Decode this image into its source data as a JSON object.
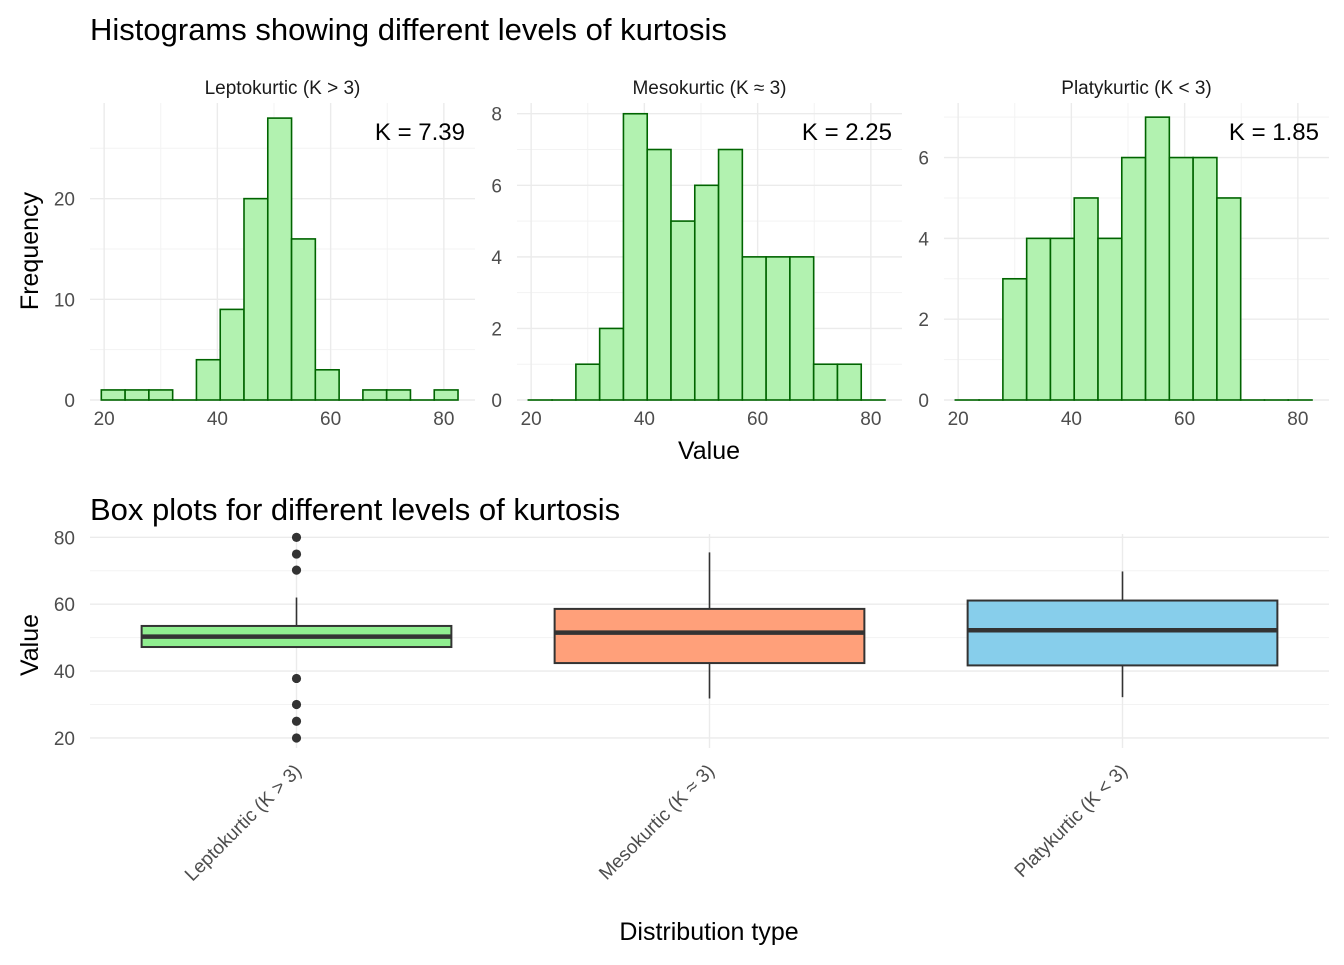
{
  "colors": {
    "hist_fill": "#b2f2b0",
    "hist_stroke": "#006400",
    "grid_major": "#ebebeb",
    "grid_minor": "#f3f3f3",
    "axis_text": "#4d4d4d",
    "title_text": "#000000",
    "box_stroke": "#333333"
  },
  "hist_title": "Histograms showing different levels of kurtosis",
  "hist_ylabel": "Frequency",
  "hist_xlabel": "Value",
  "box_title": "Box plots for different levels of kurtosis",
  "box_ylabel": "Value",
  "box_xlabel": "Distribution type",
  "chart_data": [
    {
      "type": "bar",
      "panel": "Leptokurtic (K > 3)",
      "annotation": "K = 7.39",
      "bin_width": 4.2,
      "bins": [
        [
          19.5,
          1
        ],
        [
          23.7,
          1
        ],
        [
          27.9,
          1
        ],
        [
          32.1,
          0
        ],
        [
          36.3,
          4
        ],
        [
          40.5,
          9
        ],
        [
          44.7,
          20
        ],
        [
          48.9,
          28
        ],
        [
          53.1,
          16
        ],
        [
          57.3,
          3
        ],
        [
          61.5,
          0
        ],
        [
          65.7,
          1
        ],
        [
          69.9,
          1
        ],
        [
          74.1,
          0
        ],
        [
          78.3,
          1
        ]
      ],
      "xlim": [
        17.5,
        85.5
      ],
      "ylim": [
        0,
        29.5
      ],
      "xticks": [
        20,
        40,
        60,
        80
      ],
      "yticks": [
        0,
        10,
        20
      ],
      "xlabel": "",
      "ylabel": "Frequency"
    },
    {
      "type": "bar",
      "panel": "Mesokurtic (K ≈ 3)",
      "annotation": "K = 2.25",
      "bin_width": 4.2,
      "bins": [
        [
          19.5,
          0
        ],
        [
          23.7,
          0
        ],
        [
          27.9,
          1
        ],
        [
          32.1,
          2
        ],
        [
          36.3,
          8
        ],
        [
          40.5,
          7
        ],
        [
          44.7,
          5
        ],
        [
          48.9,
          6
        ],
        [
          53.1,
          7
        ],
        [
          57.3,
          4
        ],
        [
          61.5,
          4
        ],
        [
          65.7,
          4
        ],
        [
          69.9,
          1
        ],
        [
          74.1,
          1
        ],
        [
          78.3,
          0
        ]
      ],
      "xlim": [
        17.5,
        85.5
      ],
      "ylim": [
        0,
        8.3
      ],
      "xticks": [
        20,
        40,
        60,
        80
      ],
      "yticks": [
        0,
        2,
        4,
        6,
        8
      ],
      "xlabel": "Value",
      "ylabel": ""
    },
    {
      "type": "bar",
      "panel": "Platykurtic (K < 3)",
      "annotation": "K = 1.85",
      "bin_width": 4.2,
      "bins": [
        [
          19.5,
          0
        ],
        [
          23.7,
          0
        ],
        [
          27.9,
          3
        ],
        [
          32.1,
          4
        ],
        [
          36.3,
          4
        ],
        [
          40.5,
          5
        ],
        [
          44.7,
          4
        ],
        [
          48.9,
          6
        ],
        [
          53.1,
          7
        ],
        [
          57.3,
          6
        ],
        [
          61.5,
          6
        ],
        [
          65.7,
          5
        ],
        [
          69.9,
          0
        ],
        [
          74.1,
          0
        ],
        [
          78.3,
          0
        ]
      ],
      "xlim": [
        17.5,
        85.5
      ],
      "ylim": [
        0,
        7.35
      ],
      "xticks": [
        20,
        40,
        60,
        80
      ],
      "yticks": [
        0,
        2,
        4,
        6
      ],
      "xlabel": "",
      "ylabel": ""
    },
    {
      "type": "box",
      "title": "Box plots for different levels of kurtosis",
      "xlabel": "Distribution type",
      "ylabel": "Value",
      "ylim": [
        17,
        81
      ],
      "yticks": [
        20,
        40,
        60,
        80
      ],
      "categories": [
        "Leptokurtic (K > 3)",
        "Mesokurtic (K ≈ 3)",
        "Platykurtic (K < 3)"
      ],
      "boxes": [
        {
          "category": "Leptokurtic (K > 3)",
          "min": 47.2,
          "q1": 47.2,
          "median": 50.3,
          "q3": 53.5,
          "max": 62,
          "outliers": [
            80,
            75,
            70.2,
            37.8,
            30,
            25,
            20
          ],
          "fill": "#90ee90"
        },
        {
          "category": "Mesokurtic (K ≈ 3)",
          "min": 31.8,
          "q1": 42.4,
          "median": 51.5,
          "q3": 58.6,
          "max": 75.5,
          "outliers": [],
          "fill": "#ffa07a"
        },
        {
          "category": "Platykurtic (K < 3)",
          "min": 32.2,
          "q1": 41.7,
          "median": 52.2,
          "q3": 61.1,
          "max": 69.8,
          "outliers": [],
          "fill": "#87ceeb"
        }
      ]
    }
  ]
}
